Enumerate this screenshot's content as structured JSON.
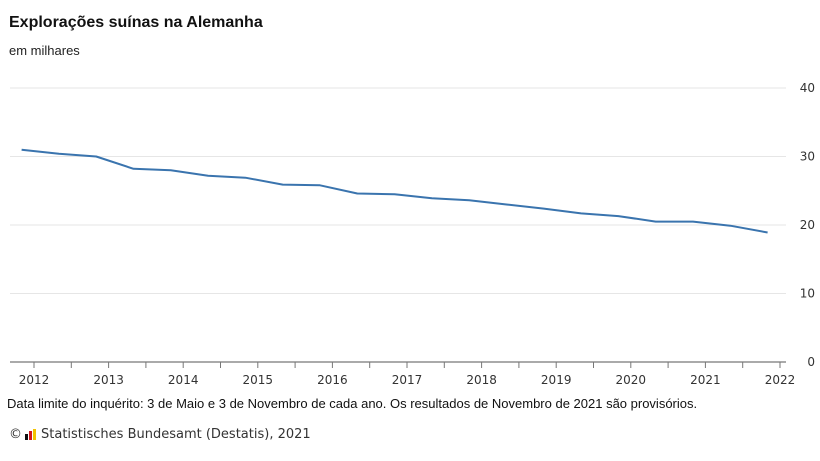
{
  "chart_data": {
    "type": "line",
    "title": "Explorações suínas na Alemanha",
    "subtitle": "em milhares",
    "x": [
      "2011-11",
      "2012-05",
      "2012-11",
      "2013-05",
      "2013-11",
      "2014-05",
      "2014-11",
      "2015-05",
      "2015-11",
      "2016-05",
      "2016-11",
      "2017-05",
      "2017-11",
      "2018-05",
      "2018-11",
      "2019-05",
      "2019-11",
      "2020-05",
      "2020-11",
      "2021-05",
      "2021-11"
    ],
    "series": [
      {
        "values": [
          31.0,
          30.4,
          30.0,
          28.2,
          28.0,
          27.2,
          26.9,
          25.9,
          25.8,
          24.6,
          24.5,
          23.9,
          23.6,
          23.0,
          22.4,
          21.7,
          21.3,
          20.5,
          20.5,
          19.9,
          18.9
        ],
        "color": "#3a74ae"
      }
    ],
    "xticks": [
      "2012",
      "2013",
      "2014",
      "2015",
      "2016",
      "2017",
      "2018",
      "2019",
      "2020",
      "2021",
      "2022"
    ],
    "yticks": [
      "0",
      "10",
      "20",
      "30",
      "40"
    ],
    "ylim": [
      0,
      40
    ],
    "grid": true,
    "y_axis_side": "right"
  },
  "footer": {
    "note": "Data limite do inquérito: 3 de Maio e 3 de Novembro de cada ano. Os resultados de Novembro de 2021 são provisórios.",
    "copyright_symbol": "©",
    "source": "Statistisches Bundesamt (Destatis), 2021",
    "logo_colors": [
      "#111111",
      "#d2161e",
      "#f3c300"
    ]
  }
}
